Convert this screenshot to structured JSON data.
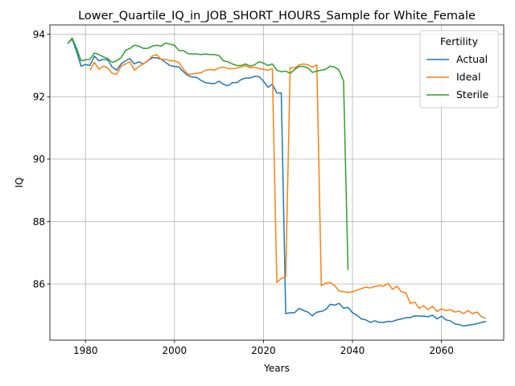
{
  "chart_data": {
    "type": "line",
    "title": "Lower_Quartile_IQ_in_JOB_SHORT_HOURS_Sample for White_Female",
    "xlabel": "Years",
    "ylabel": "IQ",
    "xlim": [
      1972,
      2074
    ],
    "ylim": [
      84.2,
      94.3
    ],
    "xticks": [
      1980,
      2000,
      2020,
      2040,
      2060
    ],
    "yticks": [
      86,
      88,
      90,
      92,
      94
    ],
    "grid": true,
    "legend": {
      "title": "Fertility",
      "placement": "top-right"
    },
    "series": [
      {
        "name": "Actual",
        "color": "#1f77b4",
        "x": [
          1976,
          1977,
          1978,
          1979,
          1980,
          1981,
          1982,
          1983,
          1984,
          1985,
          1986,
          1987,
          1988,
          1989,
          1990,
          1991,
          1992,
          1993,
          1994,
          1995,
          1996,
          1997,
          1998,
          1999,
          2000,
          2001,
          2002,
          2003,
          2004,
          2005,
          2006,
          2007,
          2008,
          2009,
          2010,
          2011,
          2012,
          2013,
          2014,
          2015,
          2016,
          2017,
          2018,
          2019,
          2020,
          2021,
          2022,
          2023,
          2024,
          2025,
          2026,
          2027,
          2028,
          2029,
          2030,
          2031,
          2032,
          2033,
          2034,
          2035,
          2036,
          2037,
          2038,
          2039,
          2040,
          2041,
          2042,
          2043,
          2044,
          2045,
          2046,
          2047,
          2048,
          2049,
          2050,
          2051,
          2052,
          2053,
          2054,
          2055,
          2056,
          2057,
          2058,
          2059,
          2060,
          2061,
          2062,
          2063,
          2064,
          2065,
          2066,
          2067,
          2068,
          2069,
          2070
        ],
        "values": [
          93.7,
          93.85,
          93.45,
          92.98,
          93.03,
          93.0,
          93.3,
          93.15,
          93.2,
          93.18,
          92.95,
          92.85,
          93.05,
          93.15,
          93.22,
          93.05,
          93.12,
          93.05,
          93.15,
          93.25,
          93.25,
          93.2,
          93.1,
          93.0,
          92.97,
          92.95,
          92.8,
          92.68,
          92.63,
          92.62,
          92.52,
          92.45,
          92.43,
          92.42,
          92.5,
          92.4,
          92.35,
          92.45,
          92.45,
          92.55,
          92.6,
          92.6,
          92.65,
          92.65,
          92.5,
          92.3,
          92.4,
          92.12,
          92.12,
          85.05,
          85.08,
          85.08,
          85.22,
          85.15,
          85.1,
          84.98,
          85.1,
          85.12,
          85.18,
          85.35,
          85.32,
          85.38,
          85.22,
          85.25,
          85.08,
          85.0,
          84.88,
          84.85,
          84.77,
          84.82,
          84.77,
          84.77,
          84.8,
          84.8,
          84.85,
          84.88,
          84.92,
          84.92,
          84.98,
          84.97,
          84.97,
          84.95,
          85.0,
          84.88,
          84.97,
          84.85,
          84.82,
          84.72,
          84.7,
          84.65,
          84.68,
          84.7,
          84.73,
          84.77,
          84.8
        ]
      },
      {
        "name": "Ideal",
        "color": "#ff7f0e",
        "x": [
          1981,
          1982,
          1983,
          1984,
          1985,
          1986,
          1987,
          1988,
          1989,
          1990,
          1991,
          1992,
          1993,
          1994,
          1995,
          1996,
          1997,
          1998,
          1999,
          2000,
          2001,
          2002,
          2003,
          2004,
          2005,
          2006,
          2007,
          2008,
          2009,
          2010,
          2011,
          2012,
          2013,
          2014,
          2015,
          2016,
          2017,
          2018,
          2019,
          2020,
          2021,
          2022,
          2023,
          2024,
          2025,
          2026,
          2027,
          2028,
          2029,
          2030,
          2031,
          2032,
          2033,
          2034,
          2035,
          2036,
          2037,
          2038,
          2039,
          2040,
          2041,
          2042,
          2043,
          2044,
          2045,
          2046,
          2047,
          2048,
          2049,
          2050,
          2051,
          2052,
          2053,
          2054,
          2055,
          2056,
          2057,
          2058,
          2059,
          2060,
          2061,
          2062,
          2063,
          2064,
          2065,
          2066,
          2067,
          2068,
          2069,
          2070
        ],
        "values": [
          92.85,
          93.1,
          92.88,
          92.98,
          92.92,
          92.75,
          92.72,
          92.98,
          93.05,
          93.12,
          92.85,
          92.97,
          93.05,
          93.15,
          93.3,
          93.35,
          93.2,
          93.2,
          93.15,
          93.15,
          93.1,
          92.88,
          92.72,
          92.73,
          92.75,
          92.77,
          92.85,
          92.87,
          92.85,
          92.92,
          92.95,
          92.9,
          92.9,
          92.92,
          92.95,
          93.0,
          92.92,
          92.95,
          92.9,
          92.88,
          92.85,
          92.9,
          86.05,
          86.18,
          86.22,
          92.93,
          92.92,
          93.02,
          93.05,
          93.02,
          92.95,
          93.02,
          85.95,
          86.02,
          86.05,
          85.95,
          85.77,
          85.75,
          85.73,
          85.75,
          85.8,
          85.85,
          85.9,
          85.87,
          85.92,
          85.95,
          85.93,
          86.02,
          85.83,
          85.93,
          85.75,
          85.72,
          85.38,
          85.42,
          85.22,
          85.3,
          85.18,
          85.28,
          85.12,
          85.2,
          85.15,
          85.18,
          85.1,
          85.13,
          85.05,
          85.15,
          85.05,
          85.1,
          84.95,
          84.9
        ]
      },
      {
        "name": "Sterile",
        "color": "#2ca02c",
        "x": [
          1976,
          1977,
          1978,
          1979,
          1980,
          1981,
          1982,
          1983,
          1984,
          1985,
          1986,
          1987,
          1988,
          1989,
          1990,
          1991,
          1992,
          1993,
          1994,
          1995,
          1996,
          1997,
          1998,
          1999,
          2000,
          2001,
          2002,
          2003,
          2004,
          2005,
          2006,
          2007,
          2008,
          2009,
          2010,
          2011,
          2012,
          2013,
          2014,
          2015,
          2016,
          2017,
          2018,
          2019,
          2020,
          2021,
          2022,
          2023,
          2024,
          2025,
          2026,
          2027,
          2028,
          2029,
          2030,
          2031,
          2032,
          2033,
          2034,
          2035,
          2036,
          2037,
          2038,
          2039
        ],
        "values": [
          93.7,
          93.88,
          93.55,
          93.15,
          93.18,
          93.2,
          93.4,
          93.35,
          93.28,
          93.22,
          93.1,
          93.15,
          93.25,
          93.48,
          93.55,
          93.65,
          93.62,
          93.55,
          93.55,
          93.62,
          93.65,
          93.62,
          93.72,
          93.68,
          93.65,
          93.48,
          93.48,
          93.38,
          93.37,
          93.37,
          93.35,
          93.37,
          93.35,
          93.35,
          93.32,
          93.15,
          93.12,
          93.05,
          93.0,
          93.0,
          93.05,
          92.98,
          93.02,
          93.12,
          93.08,
          93.0,
          93.05,
          92.85,
          92.8,
          92.82,
          92.75,
          92.87,
          92.97,
          92.97,
          92.92,
          92.78,
          92.82,
          92.85,
          92.88,
          92.98,
          92.95,
          92.85,
          92.5,
          86.45
        ]
      }
    ]
  }
}
